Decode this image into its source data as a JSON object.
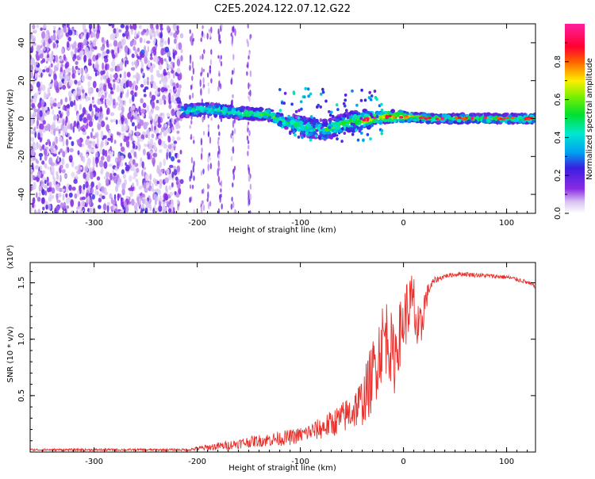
{
  "title": "C2E5.2024.122.07.12.G22",
  "colors": {
    "snr_line": "#e8302c",
    "axis": "#000000",
    "background": "#ffffff"
  },
  "chart_data": [
    {
      "type": "heatmap",
      "xlabel": "Height of straight line (km)",
      "ylabel": "Frequency (Hz)",
      "xlim": [
        -362,
        128
      ],
      "ylim": [
        -50,
        50
      ],
      "x_ticks": [
        -300,
        -200,
        -100,
        0,
        100
      ],
      "x_tick_labels": [
        "-300",
        "-200",
        "-100",
        "0",
        "100"
      ],
      "y_ticks": [
        40,
        20,
        0,
        -20,
        -40
      ],
      "y_tick_labels": [
        "40",
        "20",
        "0",
        "-20",
        "-40"
      ],
      "colorbar": {
        "label": "Normalized spectral amplitude",
        "range": [
          0,
          1
        ],
        "ticks": [
          0.0,
          0.2,
          0.4,
          0.6,
          0.8
        ],
        "tick_labels": [
          "0.0",
          "0.2",
          "0.4",
          "0.6",
          "0.8"
        ],
        "colormap": "rainbow (white-violet-blue-cyan-green-yellow-red-magenta)"
      },
      "noise_region_x_end": -215,
      "ridge": {
        "x": [
          -215,
          -190,
          -160,
          -130,
          -110,
          -90,
          -75,
          -60,
          -45,
          -30,
          -15,
          0,
          30,
          60,
          90,
          128
        ],
        "frequency": [
          4,
          5,
          3,
          2,
          -3,
          -5,
          -6,
          -3,
          -1,
          0,
          1,
          1,
          0,
          0,
          0,
          0
        ],
        "amplitude": [
          0.45,
          0.5,
          0.5,
          0.55,
          0.5,
          0.45,
          0.5,
          0.55,
          0.6,
          0.7,
          0.85,
          0.75,
          0.55,
          0.55,
          0.6,
          0.55
        ]
      }
    },
    {
      "type": "line",
      "xlabel": "Height of straight line (km)",
      "ylabel": "SNR (10 * v/v)",
      "y_multiplier": "(x10⁴)",
      "xlim": [
        -362,
        128
      ],
      "ylim": [
        0,
        1.68
      ],
      "x_ticks": [
        -300,
        -200,
        -100,
        0,
        100
      ],
      "x_tick_labels": [
        "-300",
        "-200",
        "-100",
        "0",
        "100"
      ],
      "y_ticks": [
        0.5,
        1.0,
        1.5
      ],
      "y_tick_labels": [
        "0.5",
        "1.0",
        "1.5"
      ],
      "series": [
        {
          "x": [
            -362,
            -300,
            -250,
            -210,
            -190,
            -170,
            -150,
            -130,
            -110,
            -100,
            -90,
            -80,
            -70,
            -60,
            -50,
            -40,
            -35,
            -30,
            -25,
            -20,
            -15,
            -10,
            -5,
            0,
            5,
            10,
            15,
            20,
            25,
            30,
            40,
            55,
            70,
            85,
            100,
            115,
            128
          ],
          "values": [
            0.02,
            0.02,
            0.02,
            0.02,
            0.04,
            0.06,
            0.09,
            0.11,
            0.13,
            0.15,
            0.18,
            0.21,
            0.25,
            0.3,
            0.36,
            0.45,
            0.55,
            0.68,
            0.85,
            1.0,
            1.05,
            0.8,
            1.0,
            1.15,
            1.3,
            1.3,
            0.95,
            1.3,
            1.45,
            1.52,
            1.56,
            1.58,
            1.57,
            1.56,
            1.55,
            1.52,
            1.47
          ],
          "noise_amplitude": [
            0.01,
            0.01,
            0.01,
            0.01,
            0.03,
            0.04,
            0.05,
            0.06,
            0.07,
            0.07,
            0.08,
            0.1,
            0.12,
            0.14,
            0.17,
            0.22,
            0.28,
            0.32,
            0.35,
            0.35,
            0.35,
            0.35,
            0.3,
            0.28,
            0.3,
            0.3,
            0.3,
            0.15,
            0.06,
            0.03,
            0.02,
            0.02,
            0.02,
            0.02,
            0.02,
            0.02,
            0.02
          ]
        }
      ]
    }
  ]
}
